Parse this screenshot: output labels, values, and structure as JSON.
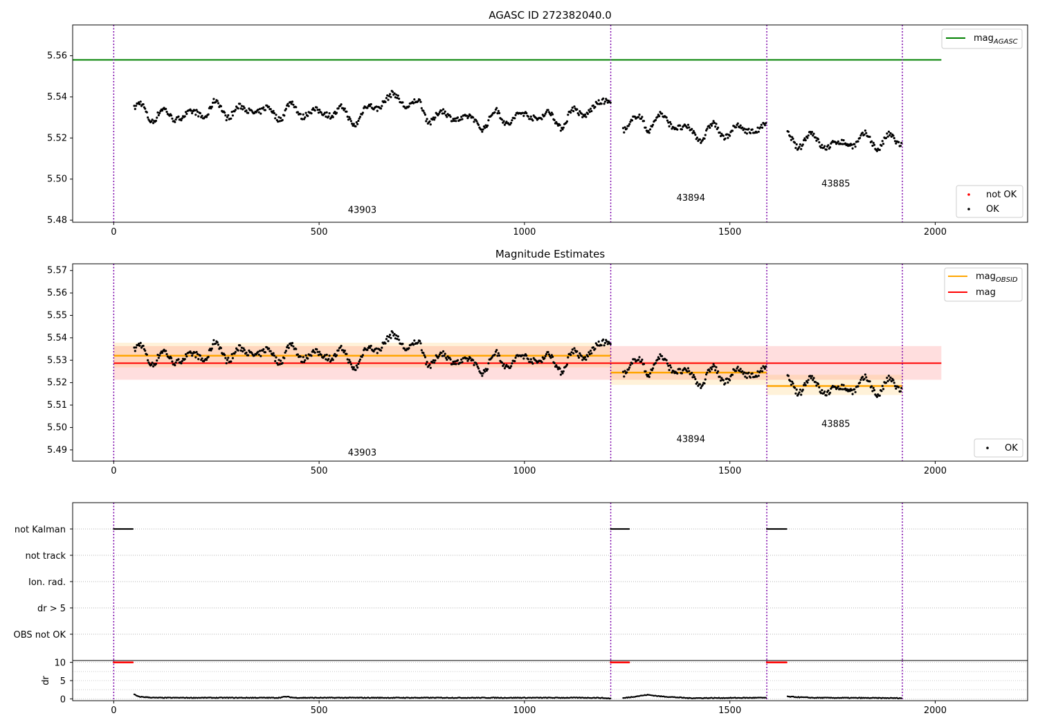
{
  "chart_data": [
    {
      "type": "scatter",
      "title": "AGASC ID 272382040.0",
      "xlabel": "",
      "ylabel": "",
      "xlim": [
        -100,
        2225
      ],
      "ylim": [
        5.479,
        5.575
      ],
      "xticks": [
        "0",
        "500",
        "1000",
        "1500",
        "2000"
      ],
      "yticks": [
        "5.48",
        "5.50",
        "5.52",
        "5.54",
        "5.56"
      ],
      "grid": false,
      "legend_upper": {
        "placement": "top-right",
        "entries": [
          {
            "label": "mag",
            "subscript": "AGASC",
            "color": "#008000"
          }
        ]
      },
      "legend_lower": {
        "placement": "bottom-right",
        "entries": [
          {
            "label": "not OK",
            "color": "#ff0000"
          },
          {
            "label": "OK",
            "color": "#000000"
          }
        ]
      },
      "mag_agasc": 5.558,
      "mag_agasc_x": [
        -100,
        2015
      ],
      "obsid_boundaries": [
        0,
        1210,
        1590,
        1920
      ],
      "obsid_labels": [
        {
          "text": "43903",
          "x": 605,
          "y": 5.4835
        },
        {
          "text": "43894",
          "x": 1405,
          "y": 5.4895
        },
        {
          "text": "43885",
          "x": 1758,
          "y": 5.4963
        }
      ],
      "series_profile": [
        [
          50,
          5.534
        ],
        [
          150,
          5.53
        ],
        [
          250,
          5.534
        ],
        [
          350,
          5.533
        ],
        [
          450,
          5.533
        ],
        [
          550,
          5.532
        ],
        [
          600,
          5.53
        ],
        [
          680,
          5.541
        ],
        [
          760,
          5.532
        ],
        [
          900,
          5.528
        ],
        [
          1000,
          5.531
        ],
        [
          1100,
          5.529
        ],
        [
          1150,
          5.533
        ],
        [
          1209,
          5.539
        ],
        [
          1240,
          5.526
        ],
        [
          1330,
          5.529
        ],
        [
          1420,
          5.522
        ],
        [
          1500,
          5.524
        ],
        [
          1588,
          5.524
        ],
        [
          1640,
          5.52
        ],
        [
          1750,
          5.517
        ],
        [
          1850,
          5.519
        ],
        [
          1918,
          5.518
        ]
      ],
      "series_gaps": [
        [
          1210,
          1240
        ],
        [
          1590,
          1640
        ]
      ],
      "series_amplitude": 0.0045,
      "series_spacing": 2.2
    },
    {
      "type": "scatter",
      "title": "Magnitude Estimates",
      "xlabel": "",
      "ylabel": "",
      "xlim": [
        -100,
        2225
      ],
      "ylim": [
        5.485,
        5.573
      ],
      "xticks": [
        "0",
        "500",
        "1000",
        "1500",
        "2000"
      ],
      "yticks": [
        "5.49",
        "5.50",
        "5.51",
        "5.52",
        "5.53",
        "5.54",
        "5.55",
        "5.56",
        "5.57"
      ],
      "grid": false,
      "legend_upper": {
        "placement": "top-right",
        "entries": [
          {
            "label": "mag",
            "subscript": "OBSID",
            "color": "#ffa500"
          },
          {
            "label": "mag",
            "color": "#ff0000"
          }
        ]
      },
      "legend_lower": {
        "placement": "bottom-right",
        "entries": [
          {
            "label": "OK",
            "color": "#000000"
          }
        ]
      },
      "mag": {
        "value": 5.5287,
        "band": [
          5.5213,
          5.5363
        ],
        "x": [
          0,
          2015
        ],
        "color": "#ff0000"
      },
      "mag_obsid": [
        {
          "x": [
            0,
            1210
          ],
          "value": 5.532,
          "band": [
            5.5268,
            5.5378
          ]
        },
        {
          "x": [
            1210,
            1590
          ],
          "value": 5.5245,
          "band": [
            5.519,
            5.5295
          ]
        },
        {
          "x": [
            1590,
            1920
          ],
          "value": 5.5185,
          "band": [
            5.5145,
            5.5235
          ]
        }
      ],
      "obsid_boundaries": [
        0,
        1210,
        1590,
        1920
      ],
      "obsid_labels": [
        {
          "text": "43903",
          "x": 605,
          "y": 5.4875
        },
        {
          "text": "43894",
          "x": 1405,
          "y": 5.4935
        },
        {
          "text": "43885",
          "x": 1758,
          "y": 5.5003
        }
      ]
    },
    {
      "type": "scatter",
      "title": "",
      "xlabel": "",
      "ylabel": "",
      "xlim": [
        -100,
        2225
      ],
      "flag_rows": [
        "not Kalman",
        "not track",
        "Ion. rad.",
        "dr > 5",
        "OBS not OK"
      ],
      "grid": true,
      "not_kalman_ranges": [
        [
          0,
          48
        ],
        [
          1210,
          1255
        ],
        [
          1590,
          1638
        ]
      ],
      "obsid_boundaries": [
        0,
        1210,
        1590,
        1920
      ]
    },
    {
      "type": "scatter",
      "title": "",
      "xlabel": "",
      "ylabel": "dr",
      "xlim": [
        -100,
        2225
      ],
      "ylim": [
        -0.5,
        10.5
      ],
      "xticks": [
        "0",
        "500",
        "1000",
        "1500",
        "2000"
      ],
      "yticks": [
        "0",
        "5",
        "10"
      ],
      "grid": true,
      "clipped_ranges": [
        [
          0,
          48
        ],
        [
          1210,
          1255
        ],
        [
          1590,
          1638
        ]
      ],
      "clipped_value": 10,
      "dr_profile": [
        [
          50,
          1.2
        ],
        [
          60,
          0.6
        ],
        [
          100,
          0.3
        ],
        [
          400,
          0.3
        ],
        [
          420,
          0.6
        ],
        [
          440,
          0.3
        ],
        [
          1180,
          0.3
        ],
        [
          1209,
          0.1
        ],
        [
          1240,
          0.2
        ],
        [
          1300,
          1.1
        ],
        [
          1330,
          0.7
        ],
        [
          1400,
          0.2
        ],
        [
          1588,
          0.3
        ],
        [
          1640,
          0.6
        ],
        [
          1700,
          0.3
        ],
        [
          1918,
          0.2
        ]
      ],
      "obsid_boundaries": [
        0,
        1210,
        1590,
        1920
      ]
    }
  ]
}
